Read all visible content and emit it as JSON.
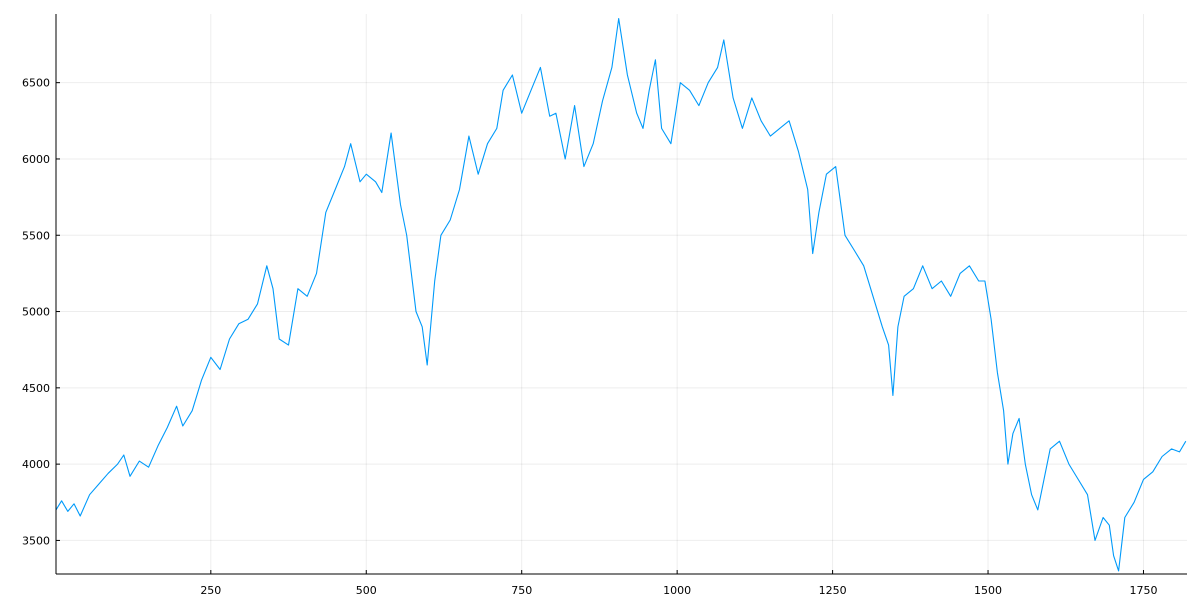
{
  "chart_data": {
    "type": "line",
    "title": "",
    "xlabel": "",
    "ylabel": "",
    "grid": true,
    "legend": "none",
    "xlim": [
      1,
      1820
    ],
    "ylim": [
      3280,
      6950
    ],
    "x_ticks": [
      250,
      500,
      750,
      1000,
      1250,
      1500,
      1750
    ],
    "y_ticks": [
      3500,
      4000,
      4500,
      5000,
      5500,
      6000,
      6500
    ],
    "series": [
      {
        "color": "#009AFA",
        "points": [
          [
            1,
            3700
          ],
          [
            10,
            3760
          ],
          [
            20,
            3690
          ],
          [
            30,
            3740
          ],
          [
            40,
            3660
          ],
          [
            55,
            3800
          ],
          [
            70,
            3870
          ],
          [
            85,
            3940
          ],
          [
            100,
            4000
          ],
          [
            110,
            4060
          ],
          [
            120,
            3920
          ],
          [
            135,
            4020
          ],
          [
            150,
            3980
          ],
          [
            165,
            4120
          ],
          [
            180,
            4240
          ],
          [
            195,
            4380
          ],
          [
            205,
            4250
          ],
          [
            220,
            4350
          ],
          [
            235,
            4550
          ],
          [
            250,
            4700
          ],
          [
            265,
            4620
          ],
          [
            280,
            4820
          ],
          [
            295,
            4920
          ],
          [
            310,
            4950
          ],
          [
            325,
            5050
          ],
          [
            340,
            5300
          ],
          [
            350,
            5150
          ],
          [
            360,
            4820
          ],
          [
            375,
            4780
          ],
          [
            390,
            5150
          ],
          [
            405,
            5100
          ],
          [
            420,
            5250
          ],
          [
            435,
            5650
          ],
          [
            450,
            5800
          ],
          [
            465,
            5950
          ],
          [
            475,
            6100
          ],
          [
            490,
            5850
          ],
          [
            500,
            5900
          ],
          [
            515,
            5850
          ],
          [
            525,
            5780
          ],
          [
            540,
            6170
          ],
          [
            555,
            5700
          ],
          [
            565,
            5500
          ],
          [
            580,
            5000
          ],
          [
            590,
            4900
          ],
          [
            598,
            4650
          ],
          [
            610,
            5200
          ],
          [
            620,
            5500
          ],
          [
            635,
            5600
          ],
          [
            650,
            5800
          ],
          [
            665,
            6150
          ],
          [
            680,
            5900
          ],
          [
            695,
            6100
          ],
          [
            710,
            6200
          ],
          [
            720,
            6450
          ],
          [
            735,
            6550
          ],
          [
            750,
            6300
          ],
          [
            765,
            6450
          ],
          [
            780,
            6600
          ],
          [
            795,
            6280
          ],
          [
            805,
            6300
          ],
          [
            820,
            6000
          ],
          [
            835,
            6350
          ],
          [
            850,
            5950
          ],
          [
            865,
            6100
          ],
          [
            880,
            6380
          ],
          [
            895,
            6600
          ],
          [
            906,
            6920
          ],
          [
            920,
            6550
          ],
          [
            935,
            6300
          ],
          [
            945,
            6200
          ],
          [
            955,
            6450
          ],
          [
            965,
            6650
          ],
          [
            975,
            6200
          ],
          [
            990,
            6100
          ],
          [
            1005,
            6500
          ],
          [
            1020,
            6450
          ],
          [
            1035,
            6350
          ],
          [
            1050,
            6500
          ],
          [
            1065,
            6600
          ],
          [
            1075,
            6780
          ],
          [
            1090,
            6400
          ],
          [
            1105,
            6200
          ],
          [
            1120,
            6400
          ],
          [
            1135,
            6250
          ],
          [
            1150,
            6150
          ],
          [
            1165,
            6200
          ],
          [
            1180,
            6250
          ],
          [
            1195,
            6050
          ],
          [
            1210,
            5800
          ],
          [
            1218,
            5380
          ],
          [
            1228,
            5650
          ],
          [
            1240,
            5900
          ],
          [
            1255,
            5950
          ],
          [
            1270,
            5500
          ],
          [
            1285,
            5400
          ],
          [
            1300,
            5300
          ],
          [
            1315,
            5100
          ],
          [
            1330,
            4900
          ],
          [
            1340,
            4780
          ],
          [
            1347,
            4450
          ],
          [
            1355,
            4900
          ],
          [
            1365,
            5100
          ],
          [
            1380,
            5150
          ],
          [
            1395,
            5300
          ],
          [
            1410,
            5150
          ],
          [
            1425,
            5200
          ],
          [
            1440,
            5100
          ],
          [
            1455,
            5250
          ],
          [
            1470,
            5300
          ],
          [
            1485,
            5200
          ],
          [
            1495,
            5200
          ],
          [
            1505,
            4950
          ],
          [
            1515,
            4600
          ],
          [
            1525,
            4350
          ],
          [
            1532,
            4000
          ],
          [
            1540,
            4200
          ],
          [
            1550,
            4300
          ],
          [
            1560,
            4000
          ],
          [
            1570,
            3800
          ],
          [
            1580,
            3700
          ],
          [
            1590,
            3900
          ],
          [
            1600,
            4100
          ],
          [
            1615,
            4150
          ],
          [
            1630,
            4000
          ],
          [
            1645,
            3900
          ],
          [
            1660,
            3800
          ],
          [
            1672,
            3500
          ],
          [
            1685,
            3650
          ],
          [
            1695,
            3600
          ],
          [
            1702,
            3400
          ],
          [
            1710,
            3300
          ],
          [
            1720,
            3650
          ],
          [
            1735,
            3750
          ],
          [
            1750,
            3900
          ],
          [
            1765,
            3950
          ],
          [
            1780,
            4050
          ],
          [
            1795,
            4100
          ],
          [
            1808,
            4080
          ],
          [
            1818,
            4150
          ]
        ]
      }
    ]
  }
}
